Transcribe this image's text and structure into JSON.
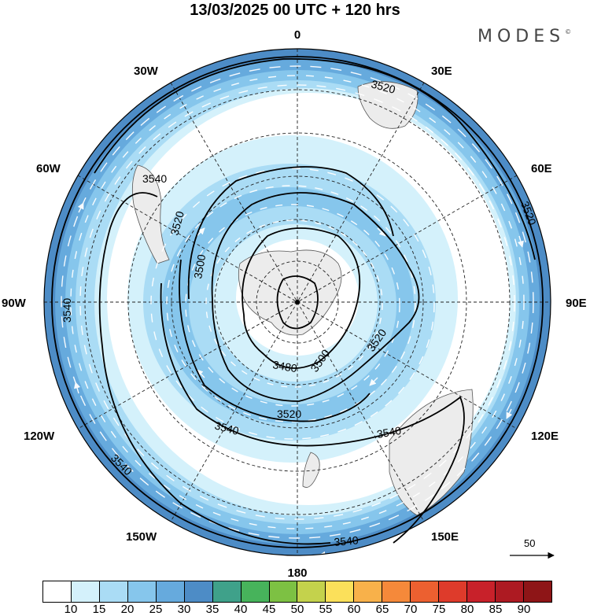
{
  "title": "13/03/2025  00 UTC  + 120 hrs",
  "brand": "MODES",
  "brand_mark": "©",
  "longitude_labels": {
    "top": "0",
    "bottom": "180",
    "left": "90W",
    "right": "90E",
    "nw30": "30W",
    "ne30": "30E",
    "nw60": "60W",
    "ne60": "60E",
    "sw120": "120W",
    "se120": "120E",
    "sw150": "150W",
    "se150": "150E"
  },
  "contours": {
    "c3480": "3480",
    "c3500a": "3500",
    "c3500b": "3500",
    "c3520a": "3520",
    "c3520b": "3520",
    "c3520c": "3520",
    "c3520d": "3520",
    "c3520e": "3520",
    "c3540a": "3540",
    "c3540b": "3540",
    "c3540c": "3540",
    "c3540d": "3540",
    "c3540e": "3540",
    "c3540f": "3540"
  },
  "reference_vector": "50",
  "colorbar": {
    "colors": [
      "#ffffff",
      "#d4f1fb",
      "#aadcf5",
      "#86c6ec",
      "#66aadd",
      "#4d8cc6",
      "#3fa18a",
      "#47b35b",
      "#7dc143",
      "#c4d24c",
      "#fbe05a",
      "#f8b14a",
      "#f5893a",
      "#ec6030",
      "#de3b2b",
      "#c8212a",
      "#ad1a22",
      "#8e1517"
    ],
    "labels": [
      "10",
      "15",
      "20",
      "25",
      "30",
      "35",
      "40",
      "45",
      "50",
      "55",
      "60",
      "65",
      "70",
      "75",
      "80",
      "85",
      "90"
    ]
  }
}
